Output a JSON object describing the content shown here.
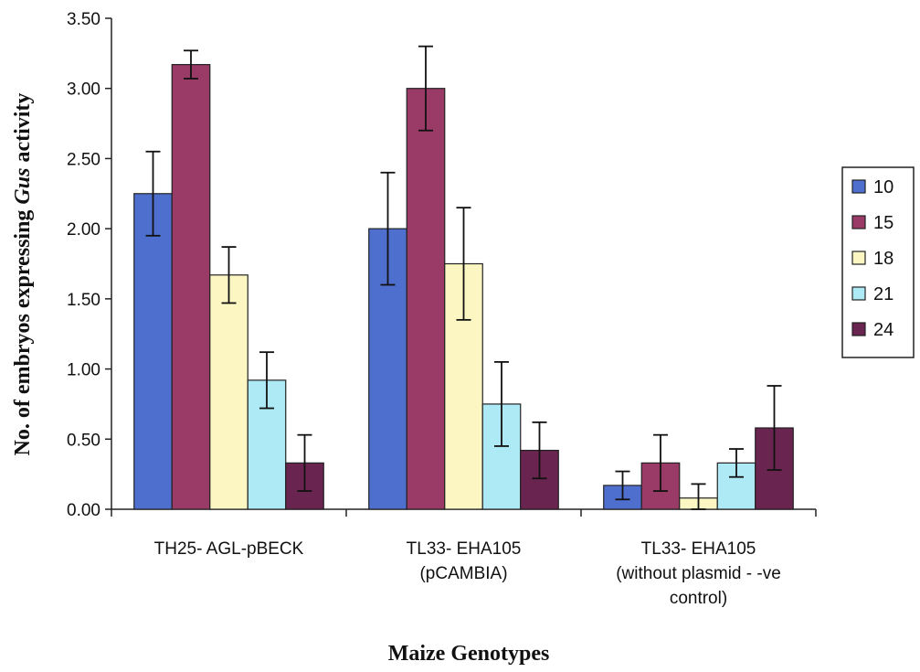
{
  "chart_data": {
    "type": "bar",
    "title": "",
    "xlabel": "Maize Genotypes",
    "ylabel_parts": [
      "No. of embryos expressing ",
      "Gus",
      " activity"
    ],
    "ylim": [
      0,
      3.5
    ],
    "yticks": [
      "0.00",
      "0.50",
      "1.00",
      "1.50",
      "2.00",
      "2.50",
      "3.00",
      "3.50"
    ],
    "grid": false,
    "legend_position": "right",
    "categories": [
      [
        "TH25- AGL-pBECK"
      ],
      [
        "TL33- EHA105",
        "(pCAMBIA)"
      ],
      [
        "TL33- EHA105",
        "(without plasmid - -ve",
        "control)"
      ]
    ],
    "series": [
      {
        "name": "10",
        "color": "#4f6fcf",
        "values": [
          2.25,
          2.0,
          0.17
        ],
        "errors": [
          0.3,
          0.4,
          0.1
        ]
      },
      {
        "name": "15",
        "color": "#9a3a66",
        "values": [
          3.17,
          3.0,
          0.33
        ],
        "errors": [
          0.1,
          0.3,
          0.2
        ]
      },
      {
        "name": "18",
        "color": "#fbf6c2",
        "values": [
          1.67,
          1.75,
          0.08
        ],
        "errors": [
          0.2,
          0.4,
          0.1
        ]
      },
      {
        "name": "21",
        "color": "#aeeaf6",
        "values": [
          0.92,
          0.75,
          0.33
        ],
        "errors": [
          0.2,
          0.3,
          0.1
        ]
      },
      {
        "name": "24",
        "color": "#6a2450",
        "values": [
          0.33,
          0.42,
          0.58
        ],
        "errors": [
          0.2,
          0.2,
          0.3
        ]
      }
    ]
  }
}
